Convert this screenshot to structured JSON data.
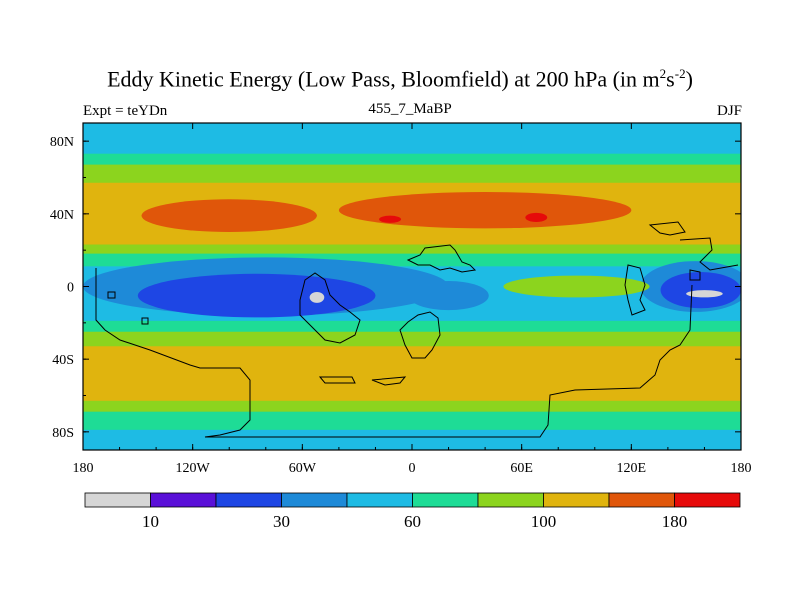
{
  "chart_data": {
    "type": "heatmap",
    "title_main": "Eddy Kinetic Energy (Low Pass, Bloomfield) at 200 hPa (in m",
    "title_sup1": "2",
    "title_mid": "s",
    "title_sup2": "-2",
    "title_end": ")",
    "left_string": "Expt = teYDn",
    "center_string": "455_7_MaBP",
    "right_string": "DJF",
    "x_range": [
      -180,
      180
    ],
    "y_range": [
      -90,
      90
    ],
    "x_ticks": [
      {
        "value": -180,
        "label": "180"
      },
      {
        "value": -120,
        "label": "120W"
      },
      {
        "value": -60,
        "label": "60W"
      },
      {
        "value": 0,
        "label": "0"
      },
      {
        "value": 60,
        "label": "60E"
      },
      {
        "value": 120,
        "label": "120E"
      },
      {
        "value": 180,
        "label": "180"
      }
    ],
    "y_ticks": [
      {
        "value": 80,
        "label": "80N"
      },
      {
        "value": 40,
        "label": "40N"
      },
      {
        "value": 0,
        "label": "0"
      },
      {
        "value": -40,
        "label": "40S"
      },
      {
        "value": -80,
        "label": "80S"
      }
    ],
    "colorbar": {
      "colors": [
        "#d6d6d6",
        "#5a10d8",
        "#1e46e4",
        "#1e8ad8",
        "#1ebbe4",
        "#1edc96",
        "#8cd41e",
        "#e0b40e",
        "#e0560a",
        "#e60a0a"
      ],
      "labels": [
        {
          "boundary": 1,
          "text": "10"
        },
        {
          "boundary": 3,
          "text": "30"
        },
        {
          "boundary": 5,
          "text": "60"
        },
        {
          "boundary": 7,
          "text": "100"
        },
        {
          "boundary": 9,
          "text": "180"
        }
      ]
    },
    "zonal_bands": [
      {
        "lat_top": 90,
        "lat_bottom": 72,
        "level": 4
      },
      {
        "lat_top": 72,
        "lat_bottom": 66,
        "level": 5
      },
      {
        "lat_top": 66,
        "lat_bottom": 56,
        "level": 6
      },
      {
        "lat_top": 56,
        "lat_bottom": 22,
        "level": 7
      },
      {
        "lat_top": 22,
        "lat_bottom": 17,
        "level": 6
      },
      {
        "lat_top": 17,
        "lat_bottom": 10,
        "level": 5
      },
      {
        "lat_top": 10,
        "lat_bottom": -20,
        "level": 4
      },
      {
        "lat_top": -20,
        "lat_bottom": -26,
        "level": 5
      },
      {
        "lat_top": -26,
        "lat_bottom": -34,
        "level": 6
      },
      {
        "lat_top": -34,
        "lat_bottom": -64,
        "level": 7
      },
      {
        "lat_top": -64,
        "lat_bottom": -70,
        "level": 6
      },
      {
        "lat_top": -70,
        "lat_bottom": -80,
        "level": 5
      },
      {
        "lat_top": -80,
        "lat_bottom": -90,
        "level": 4
      }
    ],
    "blobs": [
      {
        "lon": -100,
        "lat": 39,
        "rlon": 48,
        "rlat": 9,
        "level": 8
      },
      {
        "lon": 40,
        "lat": 42,
        "rlon": 80,
        "rlat": 10,
        "level": 8
      },
      {
        "lon": -12,
        "lat": 37,
        "rlon": 6,
        "rlat": 2,
        "level": 9
      },
      {
        "lon": 68,
        "lat": 38,
        "rlon": 6,
        "rlat": 2.5,
        "level": 9
      },
      {
        "lon": -80,
        "lat": 0,
        "rlon": 100,
        "rlat": 16,
        "level": 3
      },
      {
        "lon": -85,
        "lat": -5,
        "rlon": 65,
        "rlat": 12,
        "level": 2
      },
      {
        "lon": -52,
        "lat": -6,
        "rlon": 4,
        "rlat": 3,
        "level": 0
      },
      {
        "lon": 20,
        "lat": -5,
        "rlon": 22,
        "rlat": 8,
        "level": 3
      },
      {
        "lon": 155,
        "lat": 0,
        "rlon": 30,
        "rlat": 14,
        "level": 3
      },
      {
        "lon": 158,
        "lat": -2,
        "rlon": 22,
        "rlat": 10,
        "level": 2
      },
      {
        "lon": 160,
        "lat": -4,
        "rlon": 10,
        "rlat": 2,
        "level": 0
      },
      {
        "lon": 90,
        "lat": 0,
        "rlon": 40,
        "rlat": 6,
        "level": 6
      }
    ],
    "units": "m2 s-2",
    "level_hPa": 200,
    "season": "DJF"
  }
}
